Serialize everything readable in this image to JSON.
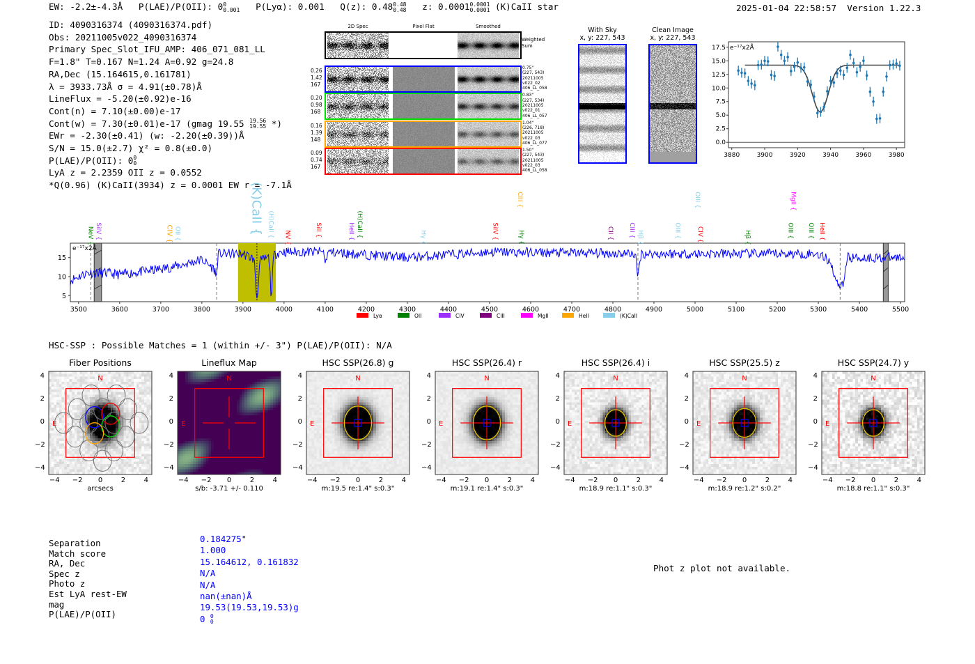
{
  "header": {
    "ew": "EW: -2.2±-4.3Å",
    "plae_label": "P(LAE)/P(OII): 0",
    "plae_sup": "0",
    "plae_sub": "0.001",
    "plya": "P(Lyα): 0.001",
    "qz": "Q(z): 0.48",
    "qz_sup": "0.48",
    "qz_sub": "0.48",
    "z": "z: 0.0001",
    "z_sup": "0.0001",
    "z_sub": "0.0001",
    "classification": "(K)CaII  star",
    "timestamp": "2025-01-04 22:58:57",
    "version": "Version 1.22.3"
  },
  "info": {
    "lines": [
      "ID: 4090316374 (4090316374.pdf)",
      "Obs: 20211005v022_4090316374",
      "Primary Spec_Slot_IFU_AMP: 406_071_081_LL",
      "F=1.8\"  T=0.167  N=1.24  A=0.92  g=24.8",
      "RA,Dec (15.164615,0.161781)",
      "λ = 3933.73Å  σ = 4.91(±0.78)Å",
      "LineFlux = -5.20(±0.92)e-16",
      "Cont(n) = 7.10(±0.00)e-17"
    ],
    "contw": "Cont(w) = 7.30(±0.01)e-17 (gmag 19.55",
    "contw_sup": "19.56",
    "contw_sub": "19.55",
    "contw_end": "*)",
    "ewr": "EWr = -2.30(±0.41) (w: -2.20(±0.39))Å",
    "sn": "S/N = 15.0(±2.7)  χ² = 0.8(±0.0)",
    "plae": "P(LAE)/P(OII): 0",
    "plae_sup": "0",
    "plae_sub": "0",
    "lya": "LyA z = 2.2359  OII z = 0.0552",
    "q": "*Q(0.96) (K)CaII(3934) z = 0.0001  EW r = -7.1Å"
  },
  "spec2d": {
    "col_titles": [
      "2D Spec",
      "Pixel Flat",
      "Smoothed"
    ],
    "weighted_label": "Weighted Sum",
    "rows": [
      {
        "color": "#0000ff",
        "left": [
          "0.26",
          "1.42",
          "167"
        ],
        "right": [
          "0.75\"",
          "(227, 543)",
          "20211005",
          "v022_02",
          "406_LL_058"
        ]
      },
      {
        "color": "#00dd00",
        "left": [
          "0.20",
          "0.98",
          "168"
        ],
        "right": [
          "0.83\"",
          "(227, 534)",
          "20211005",
          "v022_01",
          "406_LL_057"
        ]
      },
      {
        "color": "#ffa500",
        "left": [
          "0.16",
          "1.39",
          "148"
        ],
        "right": [
          "1.04\"",
          "(226, 718)",
          "20211005",
          "v022_03",
          "406_LL_077"
        ]
      },
      {
        "color": "#ff0000",
        "left": [
          "0.09",
          "0.74",
          "167"
        ],
        "right": [
          "1.50\"",
          "(227, 543)",
          "20211005",
          "v022_03",
          "406_LL_058"
        ]
      }
    ]
  },
  "sky": {
    "with_sky_title": "With Sky",
    "with_sky_xy": "x, y: 227, 543",
    "clean_title": "Clean Image",
    "clean_xy": "x, y: 227, 543"
  },
  "zoom_plot": {
    "chart_data": {
      "type": "scatter",
      "unit_label": "e⁻¹⁷x2Å",
      "xlim": [
        3878,
        3985
      ],
      "ylim": [
        -1,
        18.5
      ],
      "xticks": [
        "3880",
        "3900",
        "3920",
        "3940",
        "3960",
        "3980"
      ],
      "yticks": [
        "0.0",
        "2.5",
        "5.0",
        "7.5",
        "10.0",
        "12.5",
        "15.0",
        "17.5"
      ],
      "x": [
        3884,
        3886,
        3888,
        3890,
        3892,
        3894,
        3896,
        3898,
        3900,
        3902,
        3904,
        3906,
        3908,
        3910,
        3912,
        3914,
        3916,
        3918,
        3920,
        3922,
        3924,
        3926,
        3928,
        3930,
        3932,
        3934,
        3936,
        3938,
        3940,
        3942,
        3944,
        3946,
        3948,
        3950,
        3952,
        3954,
        3956,
        3958,
        3960,
        3962,
        3964,
        3966,
        3968,
        3970,
        3972,
        3974,
        3976,
        3978,
        3980,
        3982
      ],
      "y": [
        13.2,
        12.8,
        12.7,
        11.3,
        10.8,
        10.5,
        14.2,
        14.3,
        15.0,
        14.9,
        12.4,
        12.2,
        17.6,
        16.1,
        15.0,
        15.7,
        13.1,
        13.9,
        14.7,
        13.7,
        13.8,
        11.2,
        10.6,
        8.4,
        5.4,
        5.6,
        6.5,
        9.4,
        11.3,
        11.0,
        12.7,
        13.2,
        12.4,
        13.7,
        16.1,
        14.6,
        12.9,
        13.9,
        15.0,
        12.3,
        9.3,
        7.5,
        4.3,
        4.4,
        9.3,
        12.1,
        14.2,
        14.3,
        14.5,
        14.1
      ],
      "yerr": 0.9,
      "fit": {
        "continuum": 14.2,
        "amplitude": -8.6,
        "center": 3933.73,
        "sigma": 4.91,
        "range": [
          3888,
          3982
        ]
      }
    }
  },
  "spectrum": {
    "chart_data": {
      "type": "line",
      "unit_label": "e⁻¹⁷x2Å",
      "xlim": [
        3480,
        5510
      ],
      "ylim": [
        3.4,
        18.8
      ],
      "xticks": [
        "3500",
        "3600",
        "3700",
        "3800",
        "3900",
        "4000",
        "4100",
        "4200",
        "4300",
        "4400",
        "4500",
        "4600",
        "4700",
        "4800",
        "4900",
        "5000",
        "5100",
        "5200",
        "5300",
        "5400",
        "5500"
      ],
      "yticks": [
        "5",
        "10",
        "15"
      ],
      "continuum_anchors": [
        [
          3480,
          9
        ],
        [
          3520,
          11
        ],
        [
          3560,
          11
        ],
        [
          3600,
          10.5
        ],
        [
          3700,
          12
        ],
        [
          3750,
          13
        ],
        [
          3800,
          14.5
        ],
        [
          3830,
          12
        ],
        [
          3840,
          16
        ],
        [
          3900,
          16
        ],
        [
          3940,
          14
        ],
        [
          3990,
          16.5
        ],
        [
          4100,
          16.5
        ],
        [
          4300,
          15
        ],
        [
          4500,
          16.5
        ],
        [
          4900,
          16
        ],
        [
          5300,
          16
        ],
        [
          5330,
          14
        ],
        [
          5345,
          8
        ],
        [
          5360,
          8
        ],
        [
          5370,
          15
        ],
        [
          5510,
          15
        ]
      ],
      "absorptions": [
        [
          3934,
          -10,
          3
        ],
        [
          3969,
          -10,
          2.5
        ],
        [
          3835,
          -4,
          2
        ],
        [
          4861,
          -6,
          3
        ],
        [
          4101,
          -3,
          2
        ]
      ],
      "highlight_band": [
        3888,
        3980
      ],
      "dashed_lines": [
        3530,
        3836,
        4861,
        5353
      ],
      "center_line": 3934,
      "masked_bands": [
        [
          3538,
          3556
        ],
        [
          5458,
          5470
        ]
      ],
      "line_labels": [
        {
          "text": "NeV",
          "wave": 3530,
          "color": "#008000",
          "tier": 0
        },
        {
          "text": "SiIV",
          "wave": 3545,
          "color": "#9b30ff",
          "tier": 0
        },
        {
          "text": "CIV",
          "wave": 3722,
          "color": "#ffa500",
          "tier": 0,
          "size": "big"
        },
        {
          "text": "OII",
          "wave": 3727,
          "color": "#87ceeb",
          "tier": 0
        },
        {
          "text": "(K)CaII",
          "wave": 3934,
          "color": "#87ceeb",
          "tier": 0,
          "size": "huge"
        },
        {
          "text": "(H)CaII",
          "wave": 3969,
          "color": "#87ceeb",
          "tier": 0
        },
        {
          "text": "NV",
          "wave": 4010,
          "color": "#ff0000",
          "tier": 0
        },
        {
          "text": "SiII",
          "wave": 4085,
          "color": "#ff0000",
          "tier": 0
        },
        {
          "text": "HeII",
          "wave": 4165,
          "color": "#9b30ff",
          "tier": 0
        },
        {
          "text": "(H)CaII",
          "wave": 4185,
          "color": "#008000",
          "tier": 0
        },
        {
          "text": "Hγ",
          "wave": 4340,
          "color": "#87ceeb",
          "tier": 0
        },
        {
          "text": "SiIV",
          "wave": 4515,
          "color": "#ff0000",
          "tier": 0
        },
        {
          "text": "CIII",
          "wave": 4575,
          "color": "#ffa500",
          "tier": 1
        },
        {
          "text": "Hγ",
          "wave": 4578,
          "color": "#008000",
          "tier": 0
        },
        {
          "text": "CII",
          "wave": 4795,
          "color": "#800080",
          "tier": 0
        },
        {
          "text": "CIII",
          "wave": 4848,
          "color": "#9b30ff",
          "tier": 0
        },
        {
          "text": "Hβ",
          "wave": 4861,
          "color": "#87ceeb",
          "tier": 0
        },
        {
          "text": "OIII",
          "wave": 4959,
          "color": "#87ceeb",
          "tier": 0
        },
        {
          "text": "OIII",
          "wave": 5007,
          "color": "#87ceeb",
          "tier": 1
        },
        {
          "text": "CIV",
          "wave": 5014,
          "color": "#ff0000",
          "tier": 0
        },
        {
          "text": "Hβ",
          "wave": 5129,
          "color": "#008000",
          "tier": 0
        },
        {
          "text": "MgII",
          "wave": 5240,
          "color": "#ff00ff",
          "tier": 1
        },
        {
          "text": "OIII",
          "wave": 5233,
          "color": "#008000",
          "tier": 0
        },
        {
          "text": "OIII",
          "wave": 5283,
          "color": "#008000",
          "tier": 0
        },
        {
          "text": "HeII",
          "wave": 5310,
          "color": "#ff0000",
          "tier": 0
        }
      ],
      "legend": [
        {
          "label": "Lyα",
          "color": "#ff0000"
        },
        {
          "label": "OII",
          "color": "#008000"
        },
        {
          "label": "CIV",
          "color": "#9b30ff"
        },
        {
          "label": "CIII",
          "color": "#800080"
        },
        {
          "label": "MgII",
          "color": "#ff00ff"
        },
        {
          "label": "HeII",
          "color": "#ffa500"
        },
        {
          "label": "(K)CaII",
          "color": "#87ceeb"
        }
      ]
    }
  },
  "hsc": {
    "heading": "HSC-SSP : Possible Matches = 1 (within +/- 3\")  P(LAE)/P(OII): N/A",
    "ticks": [
      "4",
      "2",
      "0",
      "−2",
      "−4"
    ],
    "xticks": [
      "−4",
      "−2",
      "0",
      "2",
      "4"
    ],
    "north": "N",
    "east": "E",
    "panels": [
      {
        "title": "Fiber Positions",
        "caption": "arcsecs",
        "kind": "fiber"
      },
      {
        "title": "Lineflux Map",
        "caption": "s/b: -3.71 +/- 0.110",
        "kind": "flux"
      },
      {
        "title": "HSC SSP(26.8) g",
        "caption": "m:19.5  re:1.4\"  s:0.3\"",
        "kind": "hsc",
        "re": 1.4,
        "noise": 0.06
      },
      {
        "title": "HSC SSP(26.4) r",
        "caption": "m:19.1  re:1.4\"  s:0.3\"",
        "kind": "hsc",
        "re": 1.4,
        "noise": 0.06
      },
      {
        "title": "HSC SSP(26.4) i",
        "caption": "m:18.9  re:1.1\"  s:0.3\"",
        "kind": "hsc",
        "re": 1.1,
        "noise": 0.14
      },
      {
        "title": "HSC SSP(25.5) z",
        "caption": "m:18.9  re:1.2\"  s:0.2\"",
        "kind": "hsc",
        "re": 1.2,
        "noise": 0.14
      },
      {
        "title": "HSC SSP(24.7) y",
        "caption": "m:18.8  re:1.1\"  s:0.3\"",
        "kind": "hsc",
        "re": 1.1,
        "noise": 0.2
      }
    ]
  },
  "match": {
    "rows": [
      {
        "label": "Separation",
        "value": "0.184275\""
      },
      {
        "label": "Match score",
        "value": "1.000"
      },
      {
        "label": "RA, Dec",
        "value": "15.164612, 0.161832"
      },
      {
        "label": "Spec z",
        "value": "N/A"
      },
      {
        "label": "Photo z",
        "value": "N/A"
      },
      {
        "label": "Est LyA rest-EW",
        "value": "nan(±nan)Å"
      },
      {
        "label": "mag",
        "value": "19.53(19.53,19.53)g"
      }
    ],
    "plae_label": "P(LAE)/P(OII)",
    "plae_value": "0",
    "plae_sup": "0",
    "plae_sub": "0",
    "photz_note": "Phot z plot not available."
  }
}
